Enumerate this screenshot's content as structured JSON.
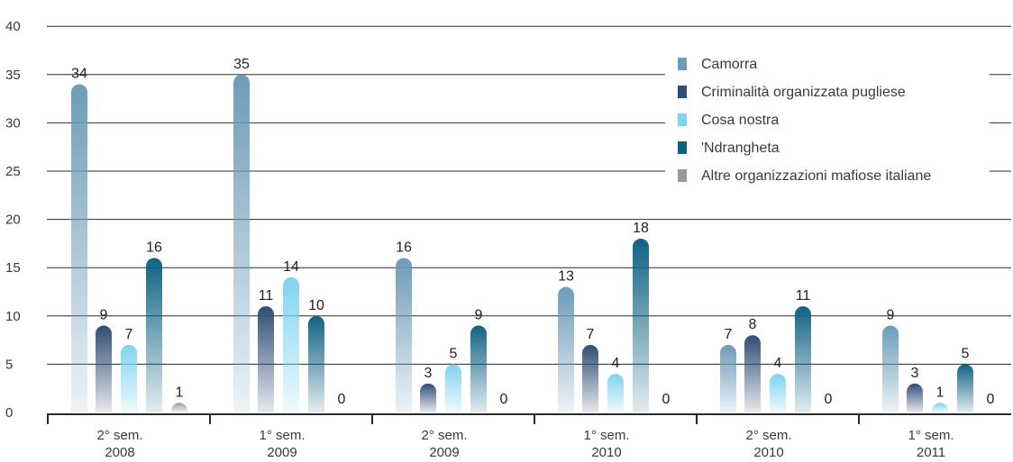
{
  "chart_data": {
    "type": "bar",
    "categories": [
      [
        "2° sem.",
        "2008"
      ],
      [
        "1° sem.",
        "2009"
      ],
      [
        "2° sem.",
        "2009"
      ],
      [
        "1° sem.",
        "2010"
      ],
      [
        "2° sem.",
        "2010"
      ],
      [
        "1° sem.",
        "2011"
      ]
    ],
    "series": [
      {
        "name": "Camorra",
        "values": [
          34,
          35,
          16,
          13,
          7,
          9
        ],
        "color": "#6d9bb8"
      },
      {
        "name": "Criminalità organizzata pugliese",
        "values": [
          9,
          11,
          3,
          7,
          8,
          3
        ],
        "color": "#2f4d75"
      },
      {
        "name": "Cosa nostra",
        "values": [
          7,
          14,
          5,
          4,
          4,
          1
        ],
        "color": "#7fd3f0"
      },
      {
        "name": "'Ndrangheta",
        "values": [
          16,
          10,
          9,
          18,
          11,
          5
        ],
        "color": "#0f6283"
      },
      {
        "name": "Altre organizzazioni mafiose italiane",
        "values": [
          1,
          0,
          0,
          0,
          0,
          0
        ],
        "color": "#9a9a9a"
      }
    ],
    "y_ticks": [
      0,
      5,
      10,
      15,
      20,
      25,
      30,
      35,
      40
    ],
    "ylim": [
      0,
      40
    ],
    "grid": true,
    "legend_position": "top-right"
  }
}
